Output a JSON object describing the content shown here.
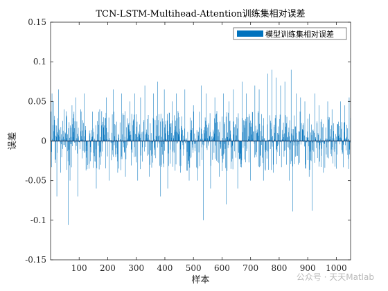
{
  "chart_data": {
    "type": "bar",
    "title": "TCN-LSTM-Multihead-Attention训练集相对误差",
    "xlabel": "样本",
    "ylabel": "误差",
    "xlim": [
      0,
      1050
    ],
    "ylim": [
      -0.15,
      0.15
    ],
    "x_ticks": [
      100,
      200,
      300,
      400,
      500,
      600,
      700,
      800,
      900,
      1000
    ],
    "y_ticks": [
      -0.15,
      -0.1,
      -0.05,
      0,
      0.05,
      0.1,
      0.15
    ],
    "y_tick_labels": [
      "-0.15",
      "-0.1",
      "-0.05",
      "0",
      "0.05",
      "0.1",
      "0.15"
    ],
    "legend": {
      "entries": [
        "模型训练集相对误差"
      ],
      "position": "top-right"
    },
    "bar_color": "#0072BD",
    "n_samples": 1050,
    "series": [
      {
        "name": "模型训练集相对误差",
        "sampled_peaks": [
          [
            5,
            0.06
          ],
          [
            10,
            0.05
          ],
          [
            15,
            0.02
          ],
          [
            22,
            -0.07
          ],
          [
            28,
            0.065
          ],
          [
            35,
            -0.04
          ],
          [
            48,
            0.04
          ],
          [
            55,
            0.03
          ],
          [
            62,
            -0.106
          ],
          [
            68,
            -0.05
          ],
          [
            75,
            0.045
          ],
          [
            88,
            0.055
          ],
          [
            95,
            -0.07
          ],
          [
            105,
            0.04
          ],
          [
            118,
            0.06
          ],
          [
            135,
            -0.035
          ],
          [
            160,
            -0.06
          ],
          [
            172,
            0.04
          ],
          [
            185,
            0.03
          ],
          [
            195,
            0.055
          ],
          [
            205,
            -0.05
          ],
          [
            220,
            0.065
          ],
          [
            235,
            -0.04
          ],
          [
            248,
            0.06
          ],
          [
            262,
            -0.045
          ],
          [
            278,
            0.05
          ],
          [
            295,
            0.06
          ],
          [
            305,
            -0.05
          ],
          [
            315,
            0.055
          ],
          [
            330,
            0.07
          ],
          [
            345,
            -0.045
          ],
          [
            360,
            0.06
          ],
          [
            375,
            0.075
          ],
          [
            385,
            -0.07
          ],
          [
            398,
            0.065
          ],
          [
            410,
            -0.06
          ],
          [
            425,
            0.05
          ],
          [
            440,
            0.06
          ],
          [
            455,
            -0.04
          ],
          [
            470,
            0.065
          ],
          [
            485,
            -0.05
          ],
          [
            500,
            0.045
          ],
          [
            515,
            -0.05
          ],
          [
            528,
            0.07
          ],
          [
            535,
            -0.1
          ],
          [
            545,
            0.06
          ],
          [
            560,
            -0.06
          ],
          [
            575,
            0.055
          ],
          [
            590,
            -0.045
          ],
          [
            605,
            0.06
          ],
          [
            615,
            -0.08
          ],
          [
            625,
            0.05
          ],
          [
            640,
            0.065
          ],
          [
            655,
            -0.06
          ],
          [
            670,
            0.075
          ],
          [
            685,
            0.06
          ],
          [
            700,
            -0.05
          ],
          [
            715,
            0.07
          ],
          [
            730,
            0.065
          ],
          [
            745,
            -0.05
          ],
          [
            760,
            0.085
          ],
          [
            775,
            0.09
          ],
          [
            780,
            -0.04
          ],
          [
            790,
            0.08
          ],
          [
            805,
            0.07
          ],
          [
            820,
            0.075
          ],
          [
            835,
            -0.05
          ],
          [
            842,
            0.09
          ],
          [
            848,
            -0.089
          ],
          [
            860,
            0.06
          ],
          [
            875,
            0.055
          ],
          [
            890,
            0.05
          ],
          [
            905,
            -0.045
          ],
          [
            915,
            -0.088
          ],
          [
            925,
            0.06
          ],
          [
            940,
            0.045
          ],
          [
            955,
            -0.04
          ],
          [
            970,
            0.05
          ],
          [
            985,
            0.04
          ],
          [
            1000,
            -0.035
          ],
          [
            1015,
            0.05
          ],
          [
            1030,
            0.045
          ],
          [
            1045,
            0.055
          ]
        ]
      }
    ]
  },
  "watermark": "公众号 · 天天Matlab"
}
